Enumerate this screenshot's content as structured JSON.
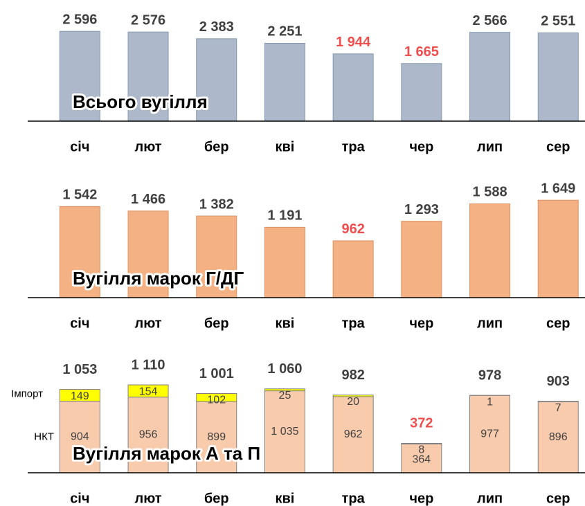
{
  "chart_data": [
    {
      "type": "bar",
      "title": "Всього вугілля",
      "categories": [
        "січ",
        "лют",
        "бер",
        "кві",
        "тра",
        "чер",
        "лип",
        "сер"
      ],
      "values": [
        2596,
        2576,
        2383,
        2251,
        1944,
        1665,
        2566,
        2551
      ],
      "value_labels": [
        "2 596",
        "2 576",
        "2 383",
        "2 251",
        "1 944",
        "1 665",
        "2 566",
        "2 551"
      ],
      "label_colors": [
        "#404040",
        "#404040",
        "#404040",
        "#404040",
        "#f04e4e",
        "#f04e4e",
        "#404040",
        "#404040"
      ],
      "color": "#adb9ca",
      "ylim": [
        0,
        3500
      ]
    },
    {
      "type": "bar",
      "title": "Вугілля марок Г/ДГ",
      "categories": [
        "січ",
        "лют",
        "бер",
        "кві",
        "тра",
        "чер",
        "лип",
        "сер"
      ],
      "values": [
        1542,
        1466,
        1382,
        1191,
        962,
        1293,
        1588,
        1649
      ],
      "value_labels": [
        "1 542",
        "1 466",
        "1 382",
        "1 191",
        "962",
        "1 293",
        "1 588",
        "1 649"
      ],
      "label_colors": [
        "#404040",
        "#404040",
        "#404040",
        "#404040",
        "#f04e4e",
        "#404040",
        "#404040",
        "#404040"
      ],
      "color": "#f4b183",
      "ylim": [
        0,
        2050
      ]
    },
    {
      "type": "stacked_bar",
      "title": "Вугілля марок А та П",
      "categories": [
        "січ",
        "лют",
        "бер",
        "кві",
        "тра",
        "чер",
        "лип",
        "сер"
      ],
      "series": [
        {
          "name": "НКТ",
          "color": "#f8cbad",
          "values": [
            904,
            956,
            899,
            1035,
            962,
            364,
            977,
            896
          ],
          "value_labels": [
            "904",
            "956",
            "899",
            "1 035",
            "962",
            "364",
            "977",
            "896"
          ]
        },
        {
          "name": "Імпорт",
          "color": "#ffff00",
          "values": [
            149,
            154,
            102,
            25,
            20,
            8,
            1,
            7
          ]
        }
      ],
      "totals": [
        1053,
        1110,
        1001,
        1060,
        982,
        372,
        978,
        903
      ],
      "total_labels": [
        "1 053",
        "1 110",
        "1 001",
        "1 060",
        "982",
        "372",
        "978",
        "903"
      ],
      "label_colors": [
        "#404040",
        "#404040",
        "#404040",
        "#404040",
        "#404040",
        "#f04e4e",
        "#404040",
        "#404040"
      ],
      "ylim": [
        0,
        1530
      ]
    }
  ]
}
